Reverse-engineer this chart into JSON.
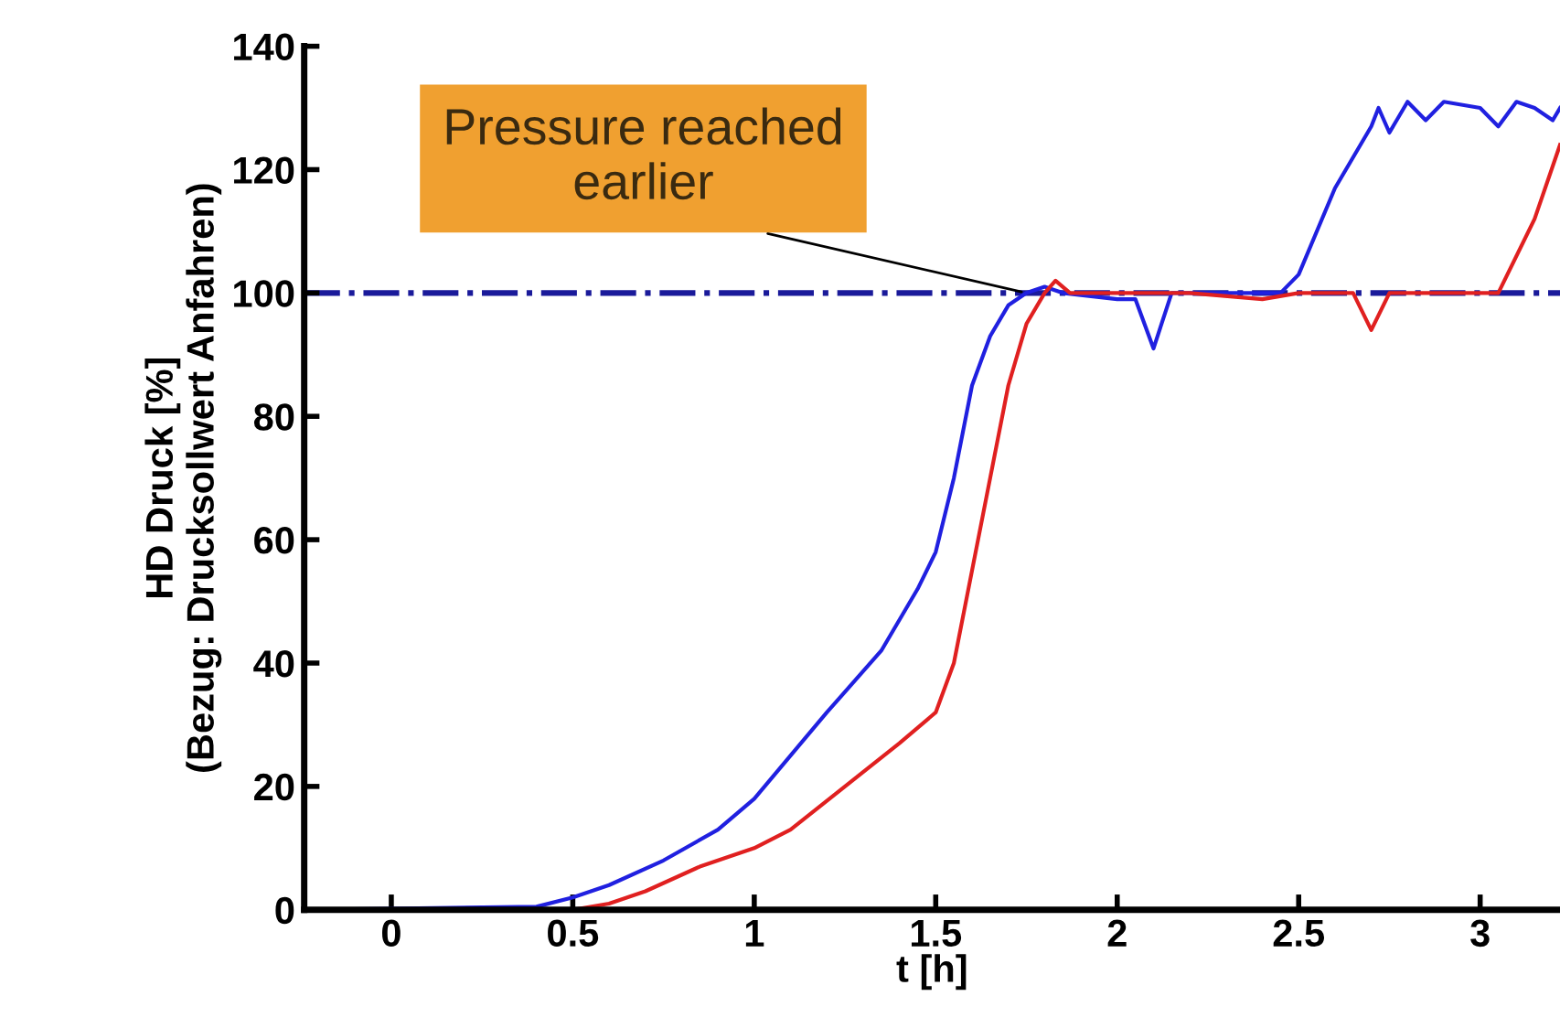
{
  "chart_data": {
    "type": "line",
    "xlabel": "t [h]",
    "ylabel": "HD Druck [%]\n(Bezug: Drucksollwert Anfahren)",
    "xlim": [
      -0.24,
      3.22
    ],
    "xticks": [
      0,
      0.5,
      1,
      1.5,
      2,
      2.5,
      3
    ],
    "ylim": [
      0,
      140
    ],
    "yticks": [
      0,
      20,
      40,
      60,
      80,
      100,
      120,
      140
    ],
    "grid": false,
    "legend": false,
    "series": [
      {
        "color": "#2020e0",
        "x": [
          -0.24,
          0.4,
          0.5,
          0.6,
          0.75,
          0.9,
          1.0,
          1.1,
          1.2,
          1.35,
          1.45,
          1.5,
          1.55,
          1.6,
          1.65,
          1.7,
          1.75,
          1.8,
          1.85,
          2.0,
          2.05,
          2.1,
          2.15,
          2.4,
          2.45,
          2.5,
          2.6,
          2.7,
          2.72,
          2.75,
          2.8,
          2.85,
          2.9,
          3.0,
          3.05,
          3.1,
          3.15,
          3.2,
          3.22
        ],
        "values": [
          0,
          0.5,
          2,
          4,
          8,
          13,
          18,
          25,
          32,
          42,
          52,
          58,
          70,
          85,
          93,
          98,
          100,
          101,
          100,
          99,
          99,
          91,
          100,
          100,
          100,
          103,
          117,
          127,
          130,
          126,
          131,
          128,
          131,
          130,
          127,
          131,
          130,
          128,
          130
        ]
      },
      {
        "color": "#e02020",
        "x": [
          -0.24,
          0.5,
          0.6,
          0.7,
          0.85,
          1.0,
          1.1,
          1.25,
          1.4,
          1.5,
          1.55,
          1.6,
          1.65,
          1.7,
          1.75,
          1.8,
          1.83,
          1.87,
          2.2,
          2.4,
          2.5,
          2.65,
          2.7,
          2.75,
          3.0,
          3.05,
          3.15,
          3.22
        ],
        "values": [
          0,
          0,
          1,
          3,
          7,
          10,
          13,
          20,
          27,
          32,
          40,
          55,
          70,
          85,
          95,
          100,
          102,
          100,
          100,
          99,
          100,
          100,
          94,
          100,
          100,
          100,
          112,
          124
        ]
      }
    ],
    "ref_lines": [
      {
        "axis": "y",
        "value": 100,
        "color": "#1a1a9a",
        "line_style": "dashdot"
      }
    ],
    "annotations": [
      {
        "text": "Pressure reached\nearlier",
        "x": 1.75,
        "y": 100
      }
    ]
  }
}
